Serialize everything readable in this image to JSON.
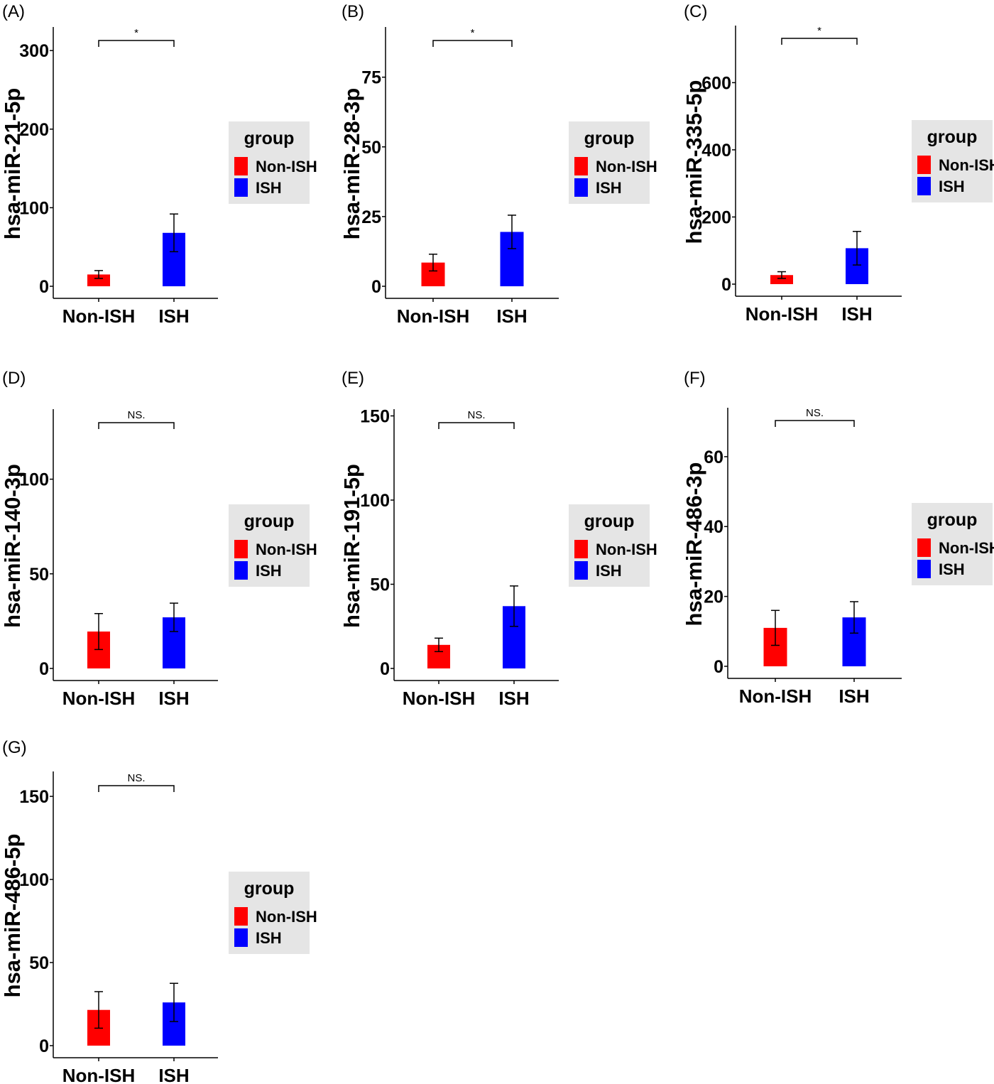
{
  "figure": {
    "legend_title": "group",
    "group_colors": {
      "Non-ISH": "#ff0000",
      "ISH": "#0000ff"
    }
  },
  "chart_data": [
    {
      "panel": "(A)",
      "type": "bar",
      "ylabel": "hsa-miR-21-5p",
      "categories": [
        "Non-ISH",
        "ISH"
      ],
      "values": [
        15,
        68
      ],
      "error": [
        5,
        24
      ],
      "yticks": [
        0,
        100,
        200,
        300
      ],
      "ylim": [
        0,
        330
      ],
      "significance": "*",
      "legend": {
        "position": "right",
        "entries": [
          "Non-ISH",
          "ISH"
        ]
      }
    },
    {
      "panel": "(B)",
      "type": "bar",
      "ylabel": "hsa-miR-28-3p",
      "categories": [
        "Non-ISH",
        "ISH"
      ],
      "values": [
        8.5,
        19.5
      ],
      "error": [
        3,
        6
      ],
      "yticks": [
        0,
        25,
        50,
        75
      ],
      "ylim": [
        0,
        93
      ],
      "significance": "*",
      "legend": {
        "position": "right",
        "entries": [
          "Non-ISH",
          "ISH"
        ]
      }
    },
    {
      "panel": "(C)",
      "type": "bar",
      "ylabel": "hsa-miR-335-5p",
      "categories": [
        "Non-ISH",
        "ISH"
      ],
      "values": [
        27,
        107
      ],
      "error": [
        10,
        50
      ],
      "yticks": [
        0,
        200,
        400,
        600
      ],
      "ylim": [
        0,
        770
      ],
      "significance": "*",
      "legend": {
        "position": "right",
        "entries": [
          "Non-ISH",
          "ISH"
        ]
      }
    },
    {
      "panel": "(D)",
      "type": "bar",
      "ylabel": "hsa-miR-140-3p",
      "categories": [
        "Non-ISH",
        "ISH"
      ],
      "values": [
        19.5,
        27
      ],
      "error": [
        9.5,
        7.5
      ],
      "yticks": [
        0,
        50,
        100
      ],
      "ylim": [
        0,
        137
      ],
      "significance": "NS.",
      "legend": {
        "position": "right",
        "entries": [
          "Non-ISH",
          "ISH"
        ]
      }
    },
    {
      "panel": "(E)",
      "type": "bar",
      "ylabel": "hsa-miR-191-5p",
      "categories": [
        "Non-ISH",
        "ISH"
      ],
      "values": [
        14,
        37
      ],
      "error": [
        4,
        12
      ],
      "yticks": [
        0,
        50,
        100,
        150
      ],
      "ylim": [
        0,
        154
      ],
      "significance": "NS.",
      "legend": {
        "position": "right",
        "entries": [
          "Non-ISH",
          "ISH"
        ]
      }
    },
    {
      "panel": "(F)",
      "type": "bar",
      "ylabel": "hsa-miR-486-3p",
      "categories": [
        "Non-ISH",
        "ISH"
      ],
      "values": [
        11,
        14
      ],
      "error": [
        5,
        4.5
      ],
      "yticks": [
        0,
        20,
        40,
        60
      ],
      "ylim": [
        0,
        74
      ],
      "significance": "NS.",
      "legend": {
        "position": "right",
        "entries": [
          "Non-ISH",
          "ISH"
        ]
      }
    },
    {
      "panel": "(G)",
      "type": "bar",
      "ylabel": "hsa-miR-486-5p",
      "categories": [
        "Non-ISH",
        "ISH"
      ],
      "values": [
        21.5,
        26
      ],
      "error": [
        11,
        11.5
      ],
      "yticks": [
        0,
        50,
        100,
        150
      ],
      "ylim": [
        0,
        165
      ],
      "significance": "NS.",
      "legend": {
        "position": "right",
        "entries": [
          "Non-ISH",
          "ISH"
        ]
      }
    }
  ]
}
